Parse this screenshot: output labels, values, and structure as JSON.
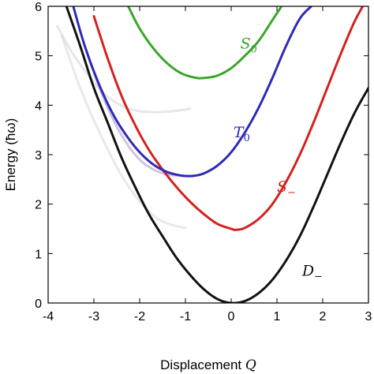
{
  "chart_data": {
    "type": "line",
    "xlabel": "Displacement",
    "xlabel_symbol": "Q",
    "ylabel": "Energy (ħω)",
    "xlim": [
      -4,
      3
    ],
    "ylim": [
      0,
      6
    ],
    "xticks": [
      -4,
      -3,
      -2,
      -1,
      0,
      1,
      2,
      3
    ],
    "yticks": [
      0,
      1,
      2,
      3,
      4,
      5,
      6
    ],
    "xtick_labels": [
      "-4",
      "-3",
      "-2",
      "-1",
      "0",
      "1",
      "2",
      "3"
    ],
    "ytick_labels": [
      "0",
      "1",
      "2",
      "3",
      "4",
      "5",
      "6"
    ],
    "grid": false,
    "series": [
      {
        "name": "D",
        "subscript": "−",
        "color": "#111111",
        "x": [
          -3.6,
          -3.3,
          -3.0,
          -2.7,
          -2.4,
          -2.1,
          -1.8,
          -1.5,
          -1.2,
          -0.9,
          -0.6,
          -0.3,
          0.0,
          0.3,
          0.6,
          0.9,
          1.2,
          1.5,
          1.8,
          2.1,
          2.4,
          2.7,
          3.0
        ],
        "y": [
          6.0,
          5.2,
          4.35,
          3.65,
          2.95,
          2.35,
          1.8,
          1.35,
          0.92,
          0.57,
          0.28,
          0.08,
          0.0,
          0.04,
          0.2,
          0.47,
          0.86,
          1.35,
          1.95,
          2.6,
          3.25,
          3.85,
          4.35
        ],
        "label_pos": [
          1.55,
          0.55
        ]
      },
      {
        "name": "S",
        "subscript": "−",
        "color": "#d42020",
        "x": [
          -3.0,
          -2.7,
          -2.4,
          -2.1,
          -1.8,
          -1.5,
          -1.2,
          -0.9,
          -0.6,
          -0.3,
          0.0,
          0.1,
          0.3,
          0.6,
          0.9,
          1.2,
          1.5,
          1.8,
          2.1,
          2.4,
          2.7,
          3.0
        ],
        "y": [
          5.8,
          4.95,
          4.2,
          3.6,
          3.1,
          2.7,
          2.35,
          2.05,
          1.8,
          1.6,
          1.5,
          1.48,
          1.52,
          1.7,
          2.0,
          2.45,
          3.0,
          3.65,
          4.35,
          5.05,
          5.7,
          6.2
        ],
        "label_pos": [
          1.0,
          2.25
        ]
      },
      {
        "name": "T",
        "subscript": "0",
        "color": "#2d2ab8",
        "x": [
          -3.45,
          -3.2,
          -2.9,
          -2.6,
          -2.3,
          -2.0,
          -1.7,
          -1.4,
          -1.1,
          -0.85,
          -0.6,
          -0.3,
          0.0,
          0.3,
          0.6,
          0.9,
          1.2,
          1.5,
          1.75
        ],
        "y": [
          6.0,
          5.2,
          4.45,
          3.85,
          3.4,
          3.05,
          2.8,
          2.65,
          2.58,
          2.57,
          2.62,
          2.78,
          3.05,
          3.45,
          3.95,
          4.55,
          5.2,
          5.75,
          6.0
        ],
        "label_pos": [
          0.05,
          3.35
        ]
      },
      {
        "name": "S",
        "subscript": "0",
        "color": "#3aa52a",
        "x": [
          -2.25,
          -2.0,
          -1.7,
          -1.4,
          -1.1,
          -0.8,
          -0.6,
          -0.3,
          0.0,
          0.3,
          0.6,
          0.9,
          1.1
        ],
        "y": [
          6.0,
          5.55,
          5.15,
          4.85,
          4.65,
          4.56,
          4.55,
          4.6,
          4.75,
          5.0,
          5.3,
          5.72,
          6.0
        ],
        "label_pos": [
          0.2,
          5.15
        ]
      }
    ],
    "faint_series": [
      {
        "color": "#7a4fb0",
        "x": [
          -3.2,
          -2.9,
          -2.6,
          -2.3,
          -2.0,
          -1.7,
          -1.4,
          -1.1,
          -0.9
        ],
        "y": [
          5.2,
          4.4,
          3.75,
          3.25,
          2.9,
          2.7,
          2.6,
          2.57,
          2.57
        ]
      },
      {
        "color": "#b8b8c8",
        "x": [
          -3.8,
          -3.5,
          -3.2,
          -2.9,
          -2.6,
          -2.3,
          -2.0,
          -1.7,
          -1.4,
          -1.1,
          -0.9
        ],
        "y": [
          5.6,
          5.1,
          4.7,
          4.35,
          4.1,
          3.95,
          3.88,
          3.86,
          3.87,
          3.9,
          3.93
        ]
      },
      {
        "color": "#c0c0c0",
        "x": [
          -3.7,
          -3.4,
          -3.1,
          -2.8,
          -2.5,
          -2.2,
          -1.9,
          -1.6,
          -1.3,
          -1.0
        ],
        "y": [
          5.4,
          4.6,
          3.9,
          3.3,
          2.75,
          2.3,
          1.95,
          1.7,
          1.58,
          1.52
        ]
      }
    ]
  }
}
